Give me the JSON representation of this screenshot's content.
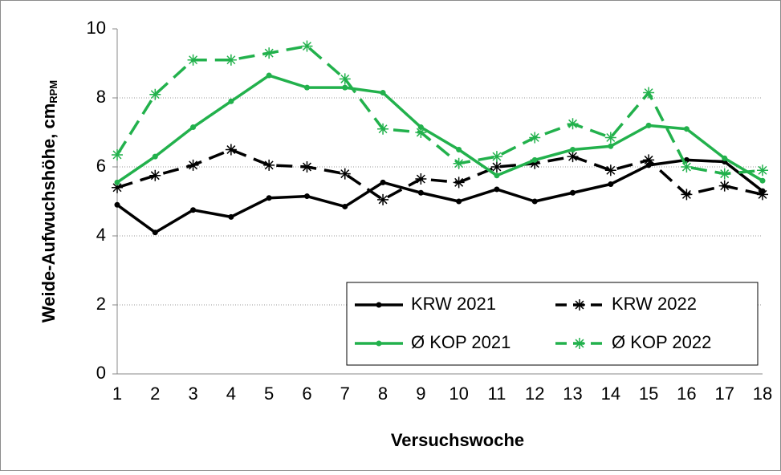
{
  "chart_data": {
    "type": "line",
    "y_label": "Weide-Aufwuchshöhe, cm",
    "y_label_sub": "RPM",
    "x_label": "Versuchswoche",
    "categories": [
      "1",
      "2",
      "3",
      "4",
      "5",
      "6",
      "7",
      "8",
      "9",
      "10",
      "11",
      "12",
      "13",
      "14",
      "15",
      "16",
      "17",
      "18"
    ],
    "ylim": [
      0,
      10
    ],
    "yticks": [
      0,
      2,
      4,
      6,
      8,
      10
    ],
    "grid": true,
    "legend": "lower right",
    "series": [
      {
        "name": "KRW 2021",
        "color": "#000000",
        "dashed": false,
        "marker": "dot",
        "values": [
          4.9,
          4.1,
          4.75,
          4.55,
          5.1,
          5.15,
          4.85,
          5.55,
          5.25,
          5.0,
          5.35,
          5.0,
          5.25,
          5.5,
          6.05,
          6.2,
          6.15,
          5.3
        ]
      },
      {
        "name": "KRW 2022",
        "color": "#000000",
        "dashed": true,
        "marker": "star",
        "values": [
          5.4,
          5.75,
          6.05,
          6.5,
          6.05,
          6.0,
          5.8,
          5.05,
          5.65,
          5.55,
          6.0,
          6.1,
          6.3,
          5.9,
          6.2,
          5.2,
          5.45,
          5.2
        ]
      },
      {
        "name": "Ø KOP 2021",
        "color": "#22b14c",
        "dashed": false,
        "marker": "dot",
        "values": [
          5.55,
          6.3,
          7.15,
          7.9,
          8.65,
          8.3,
          8.3,
          8.15,
          7.15,
          6.5,
          5.75,
          6.2,
          6.5,
          6.6,
          7.2,
          7.1,
          6.25,
          5.6
        ]
      },
      {
        "name": "Ø KOP 2022",
        "color": "#22b14c",
        "dashed": true,
        "marker": "star",
        "values": [
          6.35,
          8.1,
          9.1,
          9.1,
          9.3,
          9.5,
          8.55,
          7.1,
          7.0,
          6.1,
          6.3,
          6.85,
          7.25,
          6.85,
          8.15,
          6.0,
          5.8,
          5.9
        ]
      }
    ]
  }
}
